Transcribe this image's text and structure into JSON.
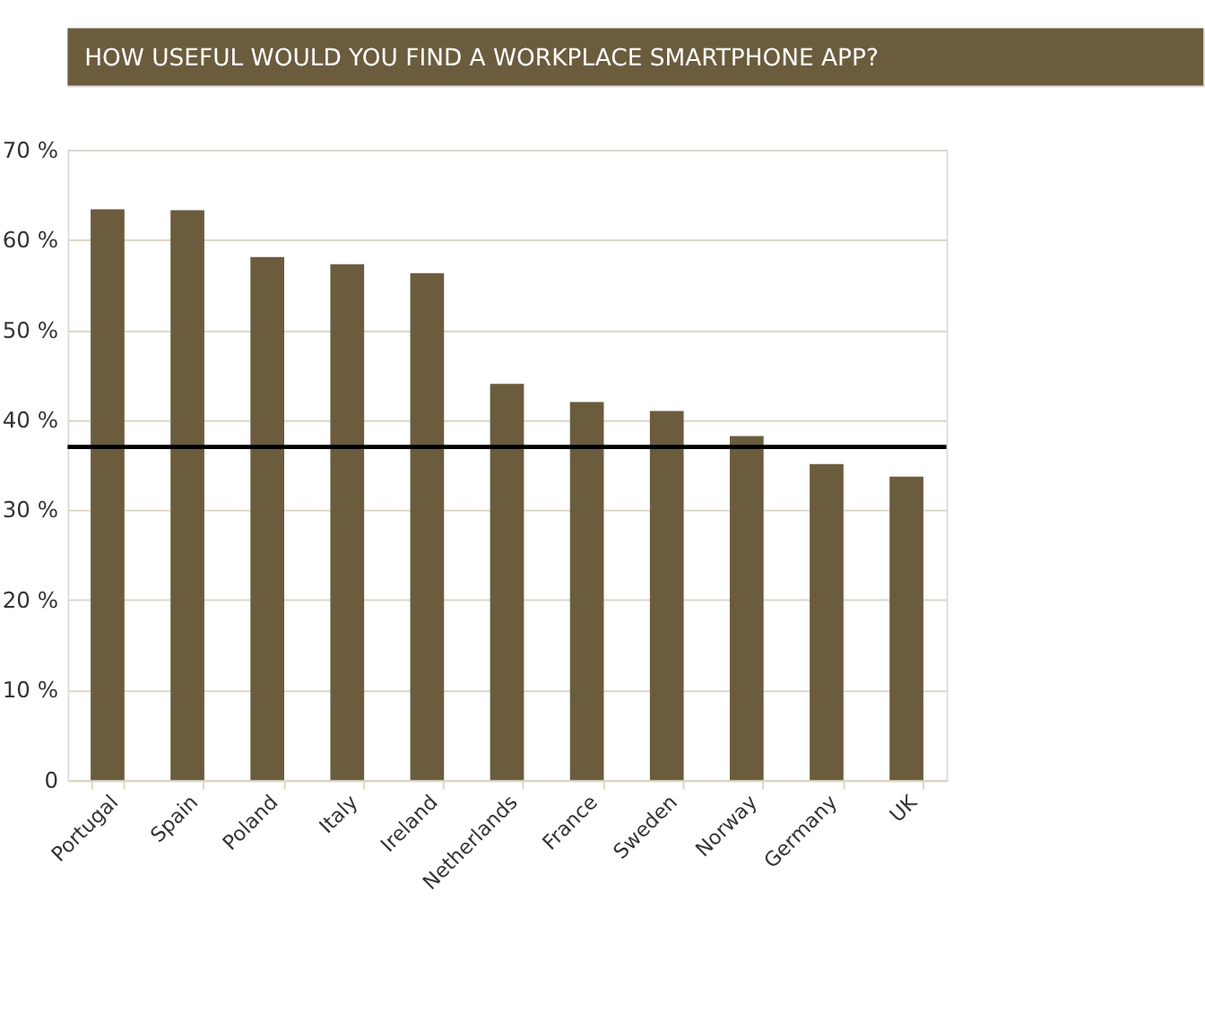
{
  "chart_data": {
    "type": "bar",
    "title": "HOW USEFUL WOULD YOU FIND A WORKPLACE SMARTPHONE APP?",
    "categories": [
      "Portugal",
      "Spain",
      "Poland",
      "Italy",
      "Ireland",
      "Netherlands",
      "France",
      "Sweden",
      "Norway",
      "Germany",
      "UK"
    ],
    "values": [
      63.4,
      63.3,
      58.1,
      57.3,
      56.3,
      44.0,
      42.0,
      41.0,
      38.2,
      35.1,
      33.7
    ],
    "color": "#6b5c3e",
    "ylim": [
      0,
      70
    ],
    "yticks": [
      0,
      {
        "value": 10,
        "label": "10 %"
      },
      {
        "value": 20,
        "label": "20 %"
      },
      {
        "value": 30,
        "label": "30 %"
      },
      {
        "value": 40,
        "label": "40 %"
      },
      {
        "value": 50,
        "label": "50 %"
      },
      {
        "value": 60,
        "label": "60 %"
      },
      {
        "value": 70,
        "label": "70 %"
      }
    ],
    "grid": "y",
    "ref_lines": [
      {
        "axis": "y",
        "value": 37.0,
        "color": "#000000"
      }
    ]
  }
}
